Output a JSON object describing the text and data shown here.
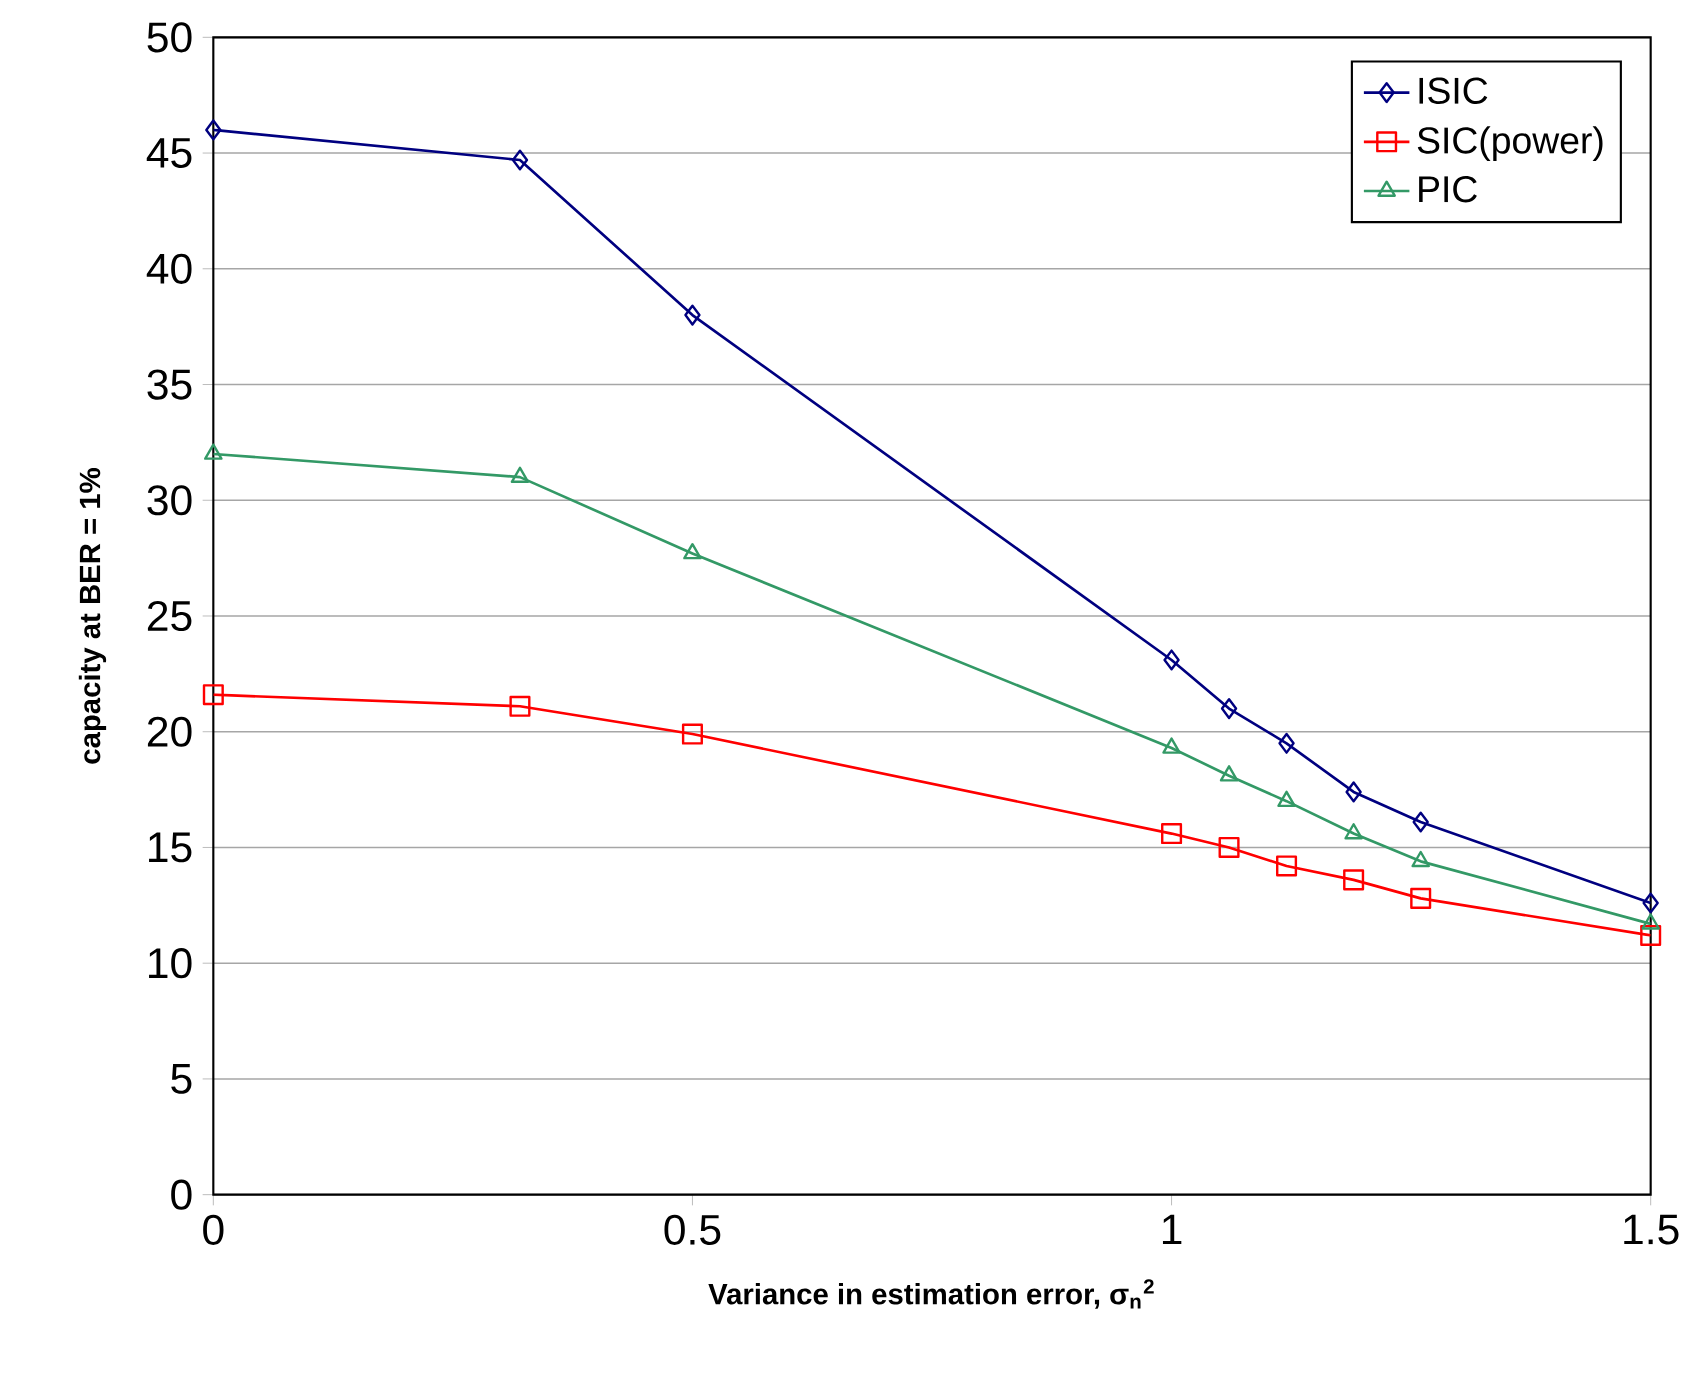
{
  "chart_data": {
    "type": "line",
    "xlabel": "Variance in estimation error, σ$_{n}$$^{2}$",
    "ylabel": "capacity at BER = 1%",
    "xlim": [
      0,
      1.5
    ],
    "ylim": [
      0,
      50
    ],
    "xticks": [
      0,
      0.5,
      1,
      1.5
    ],
    "yticks": [
      0,
      5,
      10,
      15,
      20,
      25,
      30,
      35,
      40,
      45,
      50
    ],
    "grid": "y",
    "legend": "top right",
    "series": [
      {
        "name": "ISIC",
        "color": "#000080",
        "marker": "diamond",
        "x": [
          0,
          0.32,
          0.5,
          1,
          1.06,
          1.12,
          1.19,
          1.26,
          1.5
        ],
        "values": [
          46,
          44.7,
          38,
          23.1,
          21,
          19.5,
          17.4,
          16.1,
          12.6
        ]
      },
      {
        "name": "SIC(power)",
        "color": "#ff0000",
        "marker": "square",
        "x": [
          0,
          0.32,
          0.5,
          1,
          1.06,
          1.12,
          1.19,
          1.26,
          1.5
        ],
        "values": [
          21.6,
          21.1,
          19.9,
          15.6,
          15,
          14.2,
          13.6,
          12.8,
          11.2
        ]
      },
      {
        "name": "PIC",
        "color": "#339966",
        "marker": "triangle",
        "x": [
          0,
          0.32,
          0.5,
          1,
          1.06,
          1.12,
          1.19,
          1.26,
          1.5
        ],
        "values": [
          32,
          31,
          27.7,
          19.3,
          18.1,
          17,
          15.6,
          14.4,
          11.7
        ]
      }
    ]
  }
}
